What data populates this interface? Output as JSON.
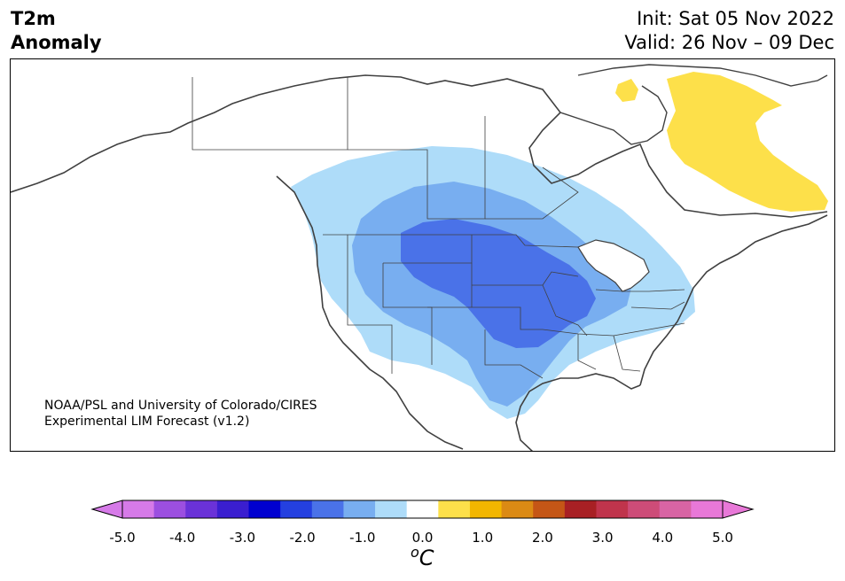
{
  "header": {
    "title_line1": "T2m",
    "title_line2": "Anomaly",
    "init": "Init: Sat 05 Nov 2022",
    "valid": "Valid: 26 Nov – 09 Dec"
  },
  "credit": {
    "line1": "NOAA/PSL and University of Colorado/CIRES",
    "line2": "Experimental LIM Forecast (v1.2)"
  },
  "colorbar": {
    "units_symbol": "o",
    "units_letter": "C",
    "tick_labels": [
      "-5.0",
      "-4.0",
      "-3.0",
      "-2.0",
      "-1.0",
      "0.0",
      "1.0",
      "2.0",
      "3.0",
      "4.0",
      "5.0"
    ],
    "colors": [
      "#d67ae8",
      "#9c4fe0",
      "#6a32d8",
      "#3a1ed0",
      "#0000d0",
      "#2440e0",
      "#4a72e8",
      "#78aef0",
      "#aedcf9",
      "#ffffff",
      "#fde04a",
      "#f2b600",
      "#db8a14",
      "#c55616",
      "#a82024",
      "#c0344c",
      "#cd4c78",
      "#d864a4",
      "#e878d8"
    ],
    "over_color": "#e878d8",
    "under_color": "#d67ae8"
  },
  "map_legend": {
    "colors": {
      "anomaly_m1_0": "#aedcf9",
      "anomaly_m1_5": "#78aef0",
      "anomaly_m2_0": "#4a72e8",
      "anomaly_p0_5": "#fde04a",
      "coast": "#404040"
    }
  }
}
